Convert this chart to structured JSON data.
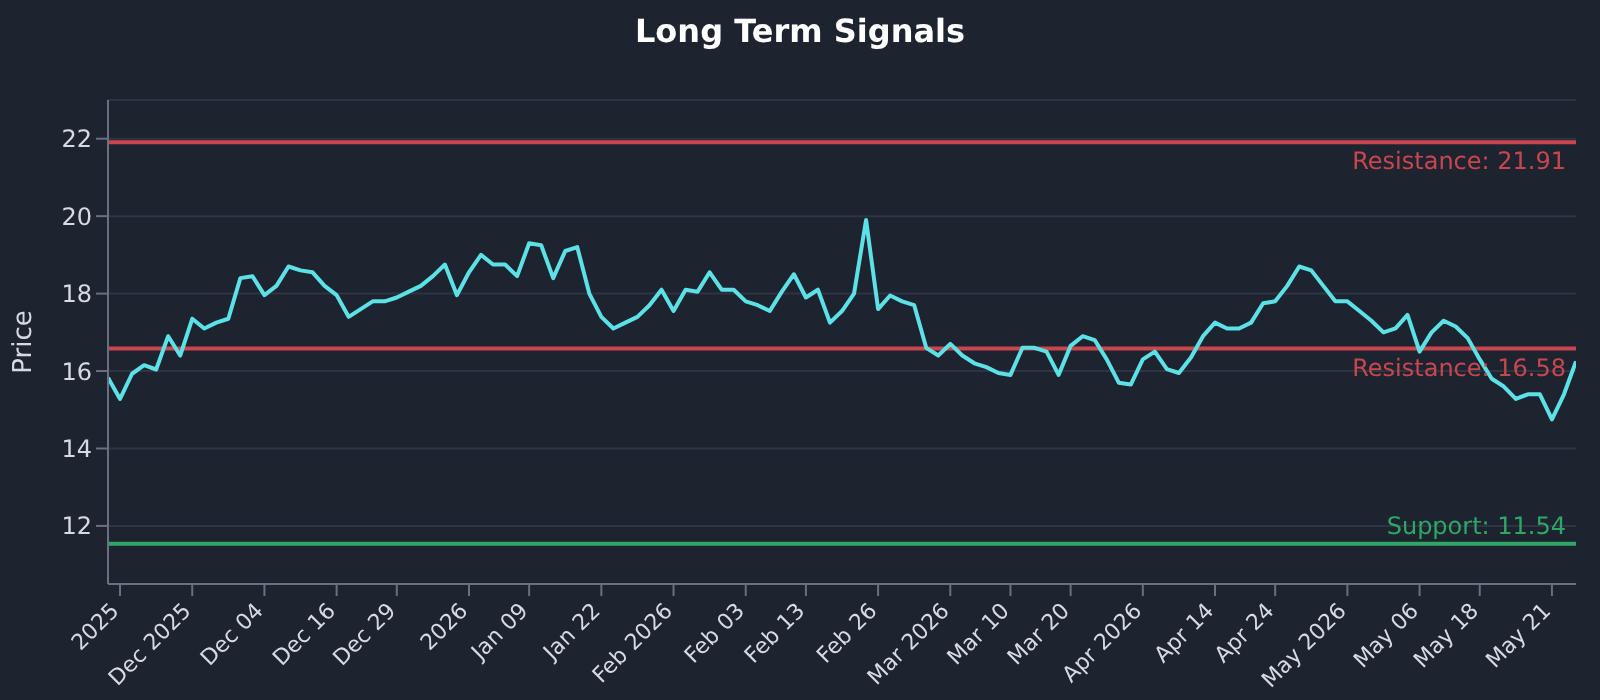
{
  "chart_data": {
    "type": "line",
    "title": "Long Term Signals",
    "ylabel": "Price",
    "categories": [
      null,
      "2025",
      null,
      null,
      null,
      null,
      null,
      "Dec 2025",
      null,
      null,
      null,
      null,
      null,
      "Dec 04",
      null,
      null,
      null,
      null,
      null,
      "Dec 16",
      null,
      null,
      null,
      null,
      "Dec 29",
      null,
      null,
      null,
      null,
      null,
      "2026",
      null,
      null,
      null,
      null,
      "Jan 09",
      null,
      null,
      null,
      null,
      null,
      "Jan 22",
      null,
      null,
      null,
      null,
      null,
      "Feb 2026",
      null,
      null,
      null,
      null,
      null,
      "Feb 03",
      null,
      null,
      null,
      null,
      "Feb 13",
      null,
      null,
      null,
      null,
      null,
      "Feb 26",
      null,
      null,
      null,
      null,
      null,
      "Mar 2026",
      null,
      null,
      null,
      null,
      "Mar 10",
      null,
      null,
      null,
      null,
      "Mar 20",
      null,
      null,
      null,
      null,
      null,
      "Apr 2026",
      null,
      null,
      null,
      null,
      null,
      "Apr 14",
      null,
      null,
      null,
      null,
      "Apr 24",
      null,
      null,
      null,
      null,
      null,
      "May 2026",
      null,
      null,
      null,
      null,
      null,
      "May 06",
      null,
      null,
      null,
      null,
      "May 18",
      null,
      null,
      null,
      null,
      null,
      "May 21",
      null,
      null
    ],
    "series": [
      {
        "color": "#5ce1e6",
        "values": [
          15.83,
          15.28,
          15.93,
          16.15,
          16.04,
          16.9,
          16.4,
          17.35,
          17.1,
          17.25,
          17.35,
          18.4,
          18.45,
          17.96,
          18.2,
          18.7,
          18.6,
          18.55,
          18.2,
          17.96,
          17.4,
          17.6,
          17.8,
          17.8,
          17.9,
          18.05,
          18.2,
          18.45,
          18.75,
          17.96,
          18.55,
          19.0,
          18.75,
          18.75,
          18.45,
          19.3,
          19.25,
          18.4,
          19.1,
          19.2,
          18.0,
          17.4,
          17.1,
          17.25,
          17.4,
          17.7,
          18.1,
          17.55,
          18.1,
          18.05,
          18.55,
          18.1,
          18.1,
          17.8,
          17.7,
          17.55,
          18.05,
          18.5,
          17.9,
          18.1,
          17.25,
          17.55,
          18.0,
          19.9,
          17.6,
          17.95,
          17.8,
          17.7,
          16.6,
          16.4,
          16.7,
          16.4,
          16.2,
          16.1,
          15.95,
          15.9,
          16.6,
          16.6,
          16.5,
          15.9,
          16.65,
          16.9,
          16.8,
          16.3,
          15.7,
          15.65,
          16.3,
          16.5,
          16.05,
          15.95,
          16.35,
          16.9,
          17.25,
          17.1,
          17.1,
          17.25,
          17.75,
          17.8,
          18.2,
          18.7,
          18.6,
          18.2,
          17.8,
          17.8,
          17.55,
          17.3,
          17.0,
          17.1,
          17.45,
          16.5,
          17.0,
          17.3,
          17.15,
          16.85,
          16.3,
          15.8,
          15.6,
          15.28,
          15.4,
          15.4,
          14.75,
          15.4,
          16.25
        ]
      }
    ],
    "ylim": [
      10.5,
      23
    ],
    "yticks": [
      12,
      14,
      16,
      18,
      20,
      22
    ],
    "grid": "y",
    "marker": "none",
    "line_style": "solid",
    "ref_lines": [
      {
        "axis": "y",
        "value": 21.91,
        "label": "Resistance: 21.91",
        "color": "#c8474f"
      },
      {
        "axis": "y",
        "value": 16.58,
        "label": "Resistance: 16.58",
        "color": "#c8474f"
      },
      {
        "axis": "y",
        "value": 11.54,
        "label": "Support: 11.54",
        "color": "#2fa866"
      }
    ]
  }
}
